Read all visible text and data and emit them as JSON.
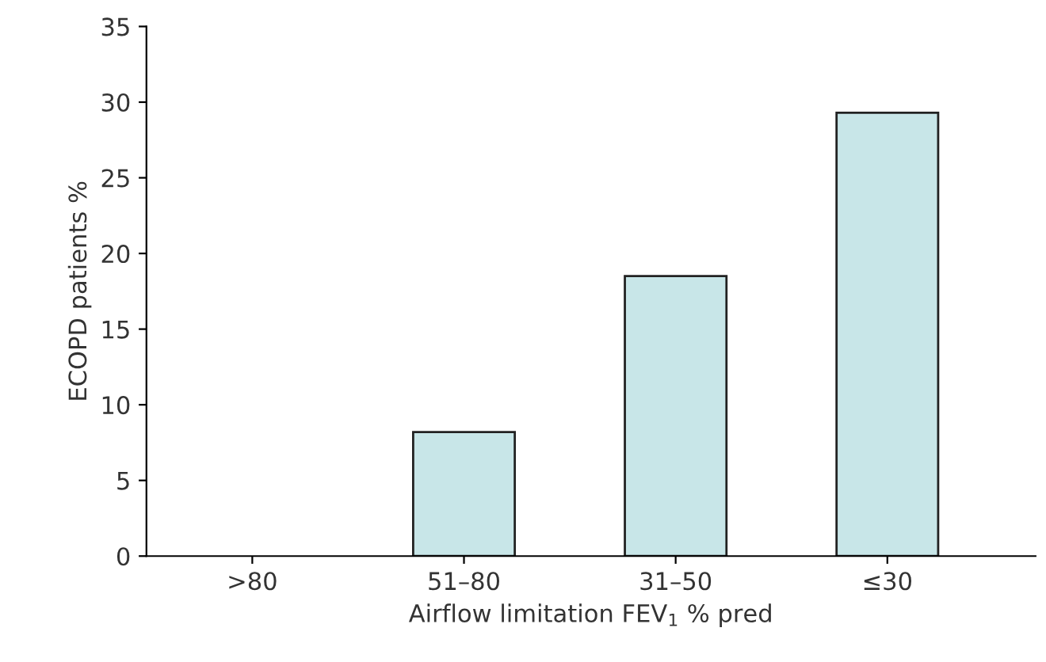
{
  "chart_data": {
    "type": "bar",
    "xlabel": "Airflow limitation FEV$_{1}$ % pred",
    "ylabel": "ECOPD patients %",
    "categories": [
      ">80",
      "51–80",
      "31–50",
      "≤30"
    ],
    "values": [
      0,
      8.2,
      18.5,
      29.3
    ],
    "color": "#c8e6e8",
    "ylim": [
      0,
      35
    ],
    "yticks": [
      0,
      5,
      10,
      15,
      20,
      25,
      30,
      35
    ],
    "grid": false
  }
}
